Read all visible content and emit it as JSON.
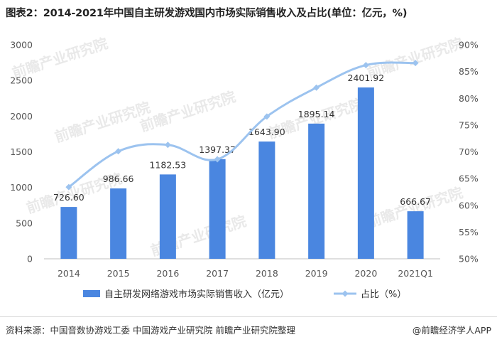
{
  "title": "图表2：2014-2021年中国自主研发游戏国内市场实际销售收入及占比(单位：亿元，%)",
  "chart_data": {
    "type": "bar",
    "categories": [
      "2014",
      "2015",
      "2016",
      "2017",
      "2018",
      "2019",
      "2020",
      "2021Q1"
    ],
    "series": [
      {
        "name": "自主研发网络游戏市场实际销售收入（亿元）",
        "type": "bar",
        "axis": "left",
        "values": [
          726.6,
          986.66,
          1182.53,
          1397.37,
          1643.9,
          1895.14,
          2401.92,
          666.67
        ],
        "labels": [
          "726.60",
          "986.66",
          "1182.53",
          "1397.37",
          "1643.90",
          "1895.14",
          "2401.92",
          "666.67"
        ],
        "color": "#4a86e0"
      },
      {
        "name": "占比（%）",
        "type": "line",
        "axis": "right",
        "values": [
          63.4,
          70.1,
          71.3,
          68.6,
          76.6,
          82.0,
          86.2,
          86.6
        ],
        "color": "#9cc3ef"
      }
    ],
    "yaxis_left": {
      "min": 0,
      "max": 3000,
      "ticks": [
        "0",
        "500",
        "1000",
        "1500",
        "2000",
        "2500",
        "3000"
      ]
    },
    "yaxis_right": {
      "min": 50,
      "max": 90,
      "ticks": [
        "50%",
        "55%",
        "60%",
        "65%",
        "70%",
        "75%",
        "80%",
        "85%",
        "90%"
      ]
    },
    "grid": false,
    "legend": "bottom"
  },
  "footer": {
    "source": "资料来源：中国音数协游戏工委 中国游戏产业研究院 前瞻产业研究院整理",
    "brand": "@前瞻经济学人APP"
  },
  "watermark": "前瞻产业研究院"
}
